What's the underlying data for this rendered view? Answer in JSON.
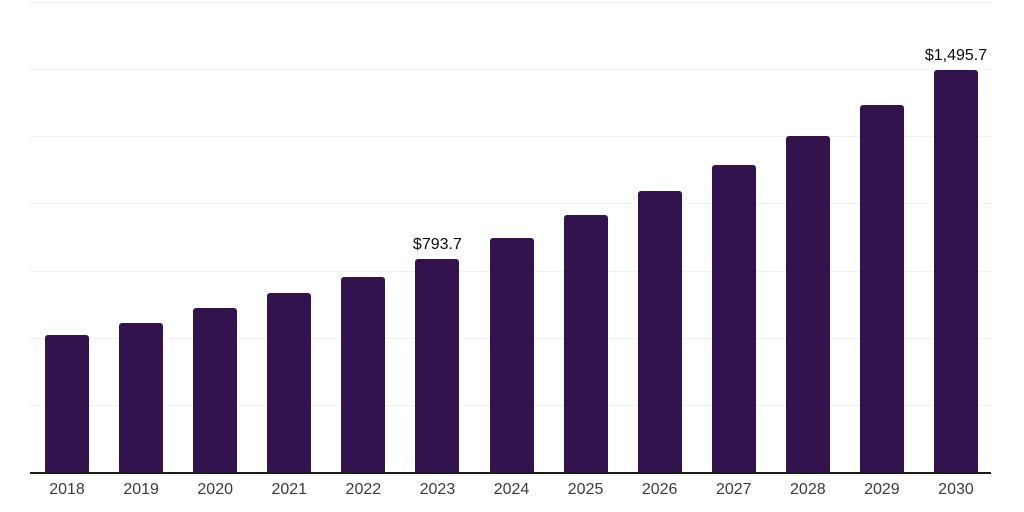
{
  "chart": {
    "background": "#ffffff",
    "bar_color": "#33134d",
    "gridline_color": "#f1f1f3",
    "axis_color": "#1c1c1c",
    "tick_label_color": "#3c3c3c",
    "data_label_color": "#0c0c0c"
  },
  "chart_data": {
    "type": "bar",
    "title": "",
    "xlabel": "",
    "ylabel": "",
    "categories": [
      "2018",
      "2019",
      "2020",
      "2021",
      "2022",
      "2023",
      "2024",
      "2025",
      "2026",
      "2027",
      "2028",
      "2029",
      "2030"
    ],
    "values": [
      512.0,
      555.2,
      612.4,
      666.3,
      725.6,
      793.7,
      872.1,
      957.9,
      1047.8,
      1144.2,
      1251.0,
      1368.1,
      1495.7
    ],
    "data_labels": [
      "",
      "",
      "",
      "",
      "",
      "$793.7",
      "",
      "",
      "",
      "",
      "",
      "",
      "$1,495.7"
    ],
    "ylim": [
      0,
      1750
    ],
    "gridline_step": 250,
    "y_axis_labels_visible": false,
    "grid": "horizontal",
    "legend_position": "none"
  }
}
